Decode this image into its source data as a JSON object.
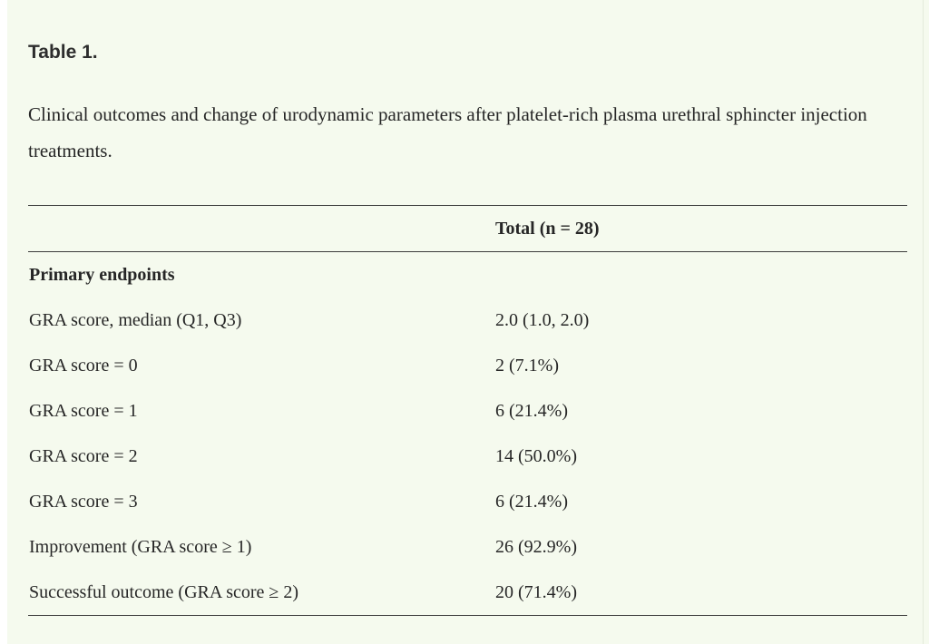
{
  "page": {
    "title": "Table 1.",
    "caption": "Clinical outcomes and change of urodynamic parameters after platelet-rich plasma urethral sphincter injection treatments."
  },
  "table": {
    "header": {
      "total": "Total (n = 28)"
    },
    "rows": [
      {
        "label": "Primary endpoints",
        "value": ""
      },
      {
        "label": "GRA score, median (Q1, Q3)",
        "value": "2.0 (1.0, 2.0)"
      },
      {
        "label": "GRA score = 0",
        "value": "2 (7.1%)"
      },
      {
        "label": "GRA score = 1",
        "value": "6 (21.4%)"
      },
      {
        "label": "GRA score = 2",
        "value": "14 (50.0%)"
      },
      {
        "label": "GRA score = 3",
        "value": "6 (21.4%)"
      },
      {
        "label": "Improvement (GRA score ≥ 1)",
        "value": "26 (92.9%)"
      },
      {
        "label": "Successful outcome (GRA score ≥ 2)",
        "value": "20 (71.4%)"
      }
    ]
  },
  "colors": {
    "background": "#f5faee",
    "rule": "#3b3b3b",
    "text": "#262626",
    "title": "#2d2d2d"
  }
}
